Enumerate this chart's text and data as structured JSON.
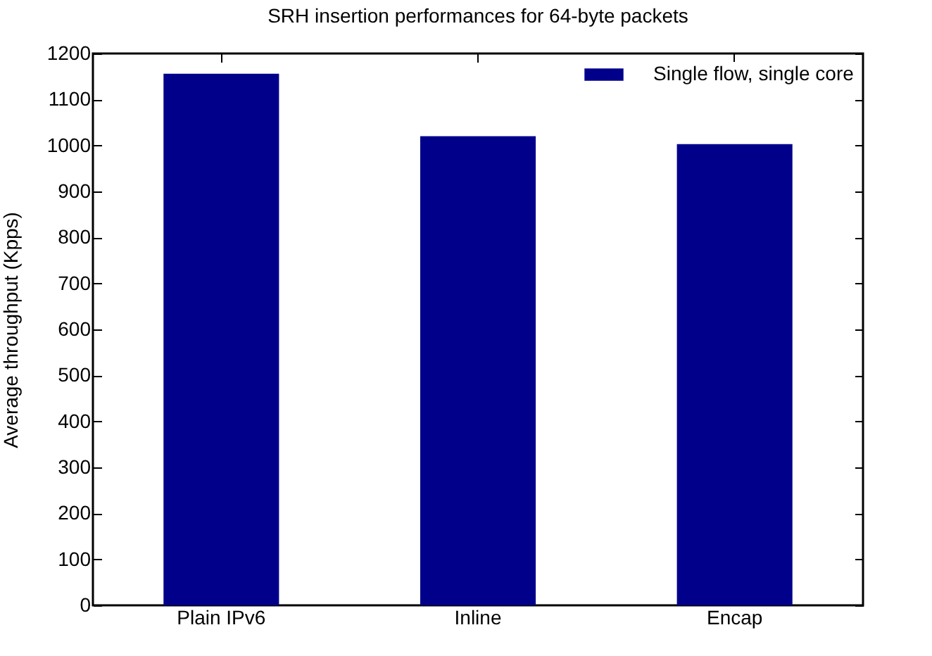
{
  "chart_data": {
    "type": "bar",
    "title": "SRH insertion performances for 64-byte packets",
    "ylabel": "Average throughput (Kpps)",
    "categories": [
      "Plain IPv6",
      "Inline",
      "Encap"
    ],
    "series": [
      {
        "name": "Single flow, single core",
        "color": "#00008b",
        "values": [
          1156,
          1020,
          1003
        ]
      }
    ],
    "ylim": [
      0,
      1200
    ],
    "yticks": [
      0,
      100,
      200,
      300,
      400,
      500,
      600,
      700,
      800,
      900,
      1000,
      1100,
      1200
    ],
    "grid": false,
    "legend": "top right"
  }
}
